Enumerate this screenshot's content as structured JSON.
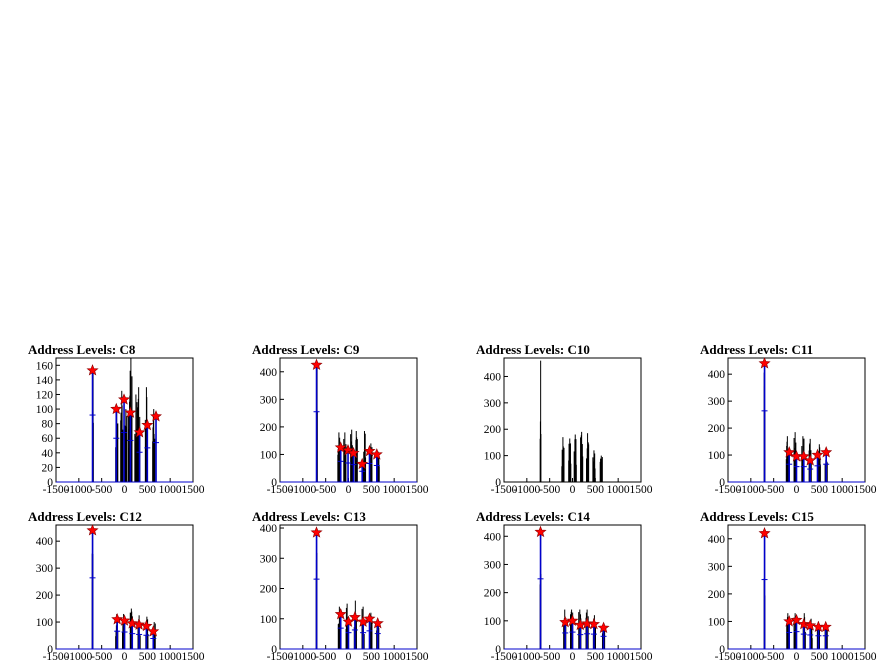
{
  "chart_data": [
    {
      "type": "line",
      "title": "Address Levels: C8",
      "xlim": [
        -1500,
        1500
      ],
      "ylim": [
        0,
        170
      ],
      "yticks": [
        0,
        20,
        40,
        60,
        80,
        100,
        120,
        140,
        160
      ],
      "xticks": [
        "-1500",
        "-1000",
        "-500",
        "0",
        "500",
        "1000",
        "1500"
      ],
      "peaks": [
        [
          -690,
          155
        ],
        [
          -170,
          100
        ],
        [
          -60,
          125
        ],
        [
          30,
          100
        ],
        [
          110,
          110
        ],
        [
          140,
          170
        ],
        [
          250,
          120
        ],
        [
          310,
          130
        ],
        [
          480,
          130
        ],
        [
          640,
          100
        ]
      ],
      "markers": [
        [
          -700,
          153
        ],
        [
          -180,
          100
        ],
        [
          -10,
          113
        ],
        [
          130,
          95
        ],
        [
          330,
          68
        ],
        [
          500,
          78
        ],
        [
          690,
          90
        ]
      ]
    },
    {
      "type": "line",
      "title": "Address Levels: C9",
      "xlim": [
        -1500,
        1500
      ],
      "ylim": [
        0,
        450
      ],
      "yticks": [
        0,
        100,
        200,
        300,
        400
      ],
      "xticks": [
        "-1500",
        "-1000",
        "-500",
        "0",
        "500",
        "1000",
        "1500"
      ],
      "peaks": [
        [
          -690,
          420
        ],
        [
          -210,
          180
        ],
        [
          -80,
          180
        ],
        [
          70,
          190
        ],
        [
          170,
          185
        ],
        [
          350,
          185
        ],
        [
          490,
          140
        ],
        [
          650,
          110
        ]
      ],
      "markers": [
        [
          -700,
          425
        ],
        [
          -170,
          125
        ],
        [
          -10,
          115
        ],
        [
          110,
          105
        ],
        [
          300,
          65
        ],
        [
          460,
          112
        ],
        [
          620,
          100
        ]
      ]
    },
    {
      "type": "line",
      "title": "Address Levels: C10",
      "xlim": [
        -1500,
        1500
      ],
      "ylim": [
        0,
        470
      ],
      "yticks": [
        0,
        100,
        200,
        300,
        400
      ],
      "xticks": [
        "-1500",
        "-1000",
        "-500",
        "0",
        "500",
        "1000",
        "1500"
      ],
      "peaks": [
        [
          -700,
          460
        ],
        [
          -210,
          170
        ],
        [
          -60,
          165
        ],
        [
          60,
          180
        ],
        [
          200,
          190
        ],
        [
          330,
          185
        ],
        [
          470,
          120
        ],
        [
          630,
          100
        ]
      ],
      "markers": []
    },
    {
      "type": "line",
      "title": "Address Levels: C11",
      "xlim": [
        -1500,
        1500
      ],
      "ylim": [
        0,
        460
      ],
      "yticks": [
        0,
        100,
        200,
        300,
        400
      ],
      "xticks": [
        "-1500",
        "-1000",
        "-500",
        "0",
        "500",
        "1000",
        "1500"
      ],
      "peaks": [
        [
          -700,
          440
        ],
        [
          -200,
          170
        ],
        [
          -30,
          185
        ],
        [
          140,
          170
        ],
        [
          300,
          160
        ],
        [
          500,
          140
        ],
        [
          650,
          110
        ]
      ],
      "markers": [
        [
          -700,
          440
        ],
        [
          -160,
          110
        ],
        [
          0,
          95
        ],
        [
          160,
          95
        ],
        [
          300,
          80
        ],
        [
          460,
          100
        ],
        [
          650,
          110
        ]
      ]
    },
    {
      "type": "line",
      "title": "Address Levels: C12",
      "xlim": [
        -1500,
        1500
      ],
      "ylim": [
        0,
        460
      ],
      "yticks": [
        0,
        100,
        200,
        300,
        400
      ],
      "xticks": [
        "-1500",
        "-1000",
        "-500",
        "0",
        "500",
        "1000",
        "1500"
      ],
      "peaks": [
        [
          -700,
          440
        ],
        [
          -170,
          130
        ],
        [
          -20,
          130
        ],
        [
          150,
          150
        ],
        [
          320,
          125
        ],
        [
          490,
          120
        ],
        [
          650,
          100
        ]
      ],
      "markers": [
        [
          -700,
          440
        ],
        [
          -160,
          110
        ],
        [
          0,
          105
        ],
        [
          170,
          95
        ],
        [
          320,
          90
        ],
        [
          480,
          85
        ],
        [
          630,
          65
        ]
      ]
    },
    {
      "type": "line",
      "title": "Address Levels: C13",
      "xlim": [
        -1500,
        1500
      ],
      "ylim": [
        0,
        410
      ],
      "yticks": [
        0,
        100,
        200,
        300,
        400
      ],
      "xticks": [
        "-1500",
        "-1000",
        "-500",
        "0",
        "500",
        "1000",
        "1500"
      ],
      "peaks": [
        [
          -700,
          390
        ],
        [
          -200,
          140
        ],
        [
          -30,
          150
        ],
        [
          150,
          160
        ],
        [
          320,
          140
        ],
        [
          490,
          120
        ],
        [
          640,
          100
        ]
      ],
      "markers": [
        [
          -700,
          385
        ],
        [
          -170,
          115
        ],
        [
          0,
          90
        ],
        [
          140,
          105
        ],
        [
          320,
          90
        ],
        [
          460,
          100
        ],
        [
          640,
          85
        ]
      ]
    },
    {
      "type": "line",
      "title": "Address Levels: C14",
      "xlim": [
        -1500,
        1500
      ],
      "ylim": [
        0,
        440
      ],
      "yticks": [
        0,
        100,
        200,
        300,
        400
      ],
      "xticks": [
        "-1500",
        "-1000",
        "-500",
        "0",
        "500",
        "1000",
        "1500"
      ],
      "peaks": [
        [
          -700,
          410
        ],
        [
          -170,
          140
        ],
        [
          -20,
          140
        ],
        [
          160,
          140
        ],
        [
          320,
          140
        ],
        [
          480,
          120
        ],
        [
          680,
          90
        ]
      ],
      "markers": [
        [
          -700,
          415
        ],
        [
          -160,
          95
        ],
        [
          0,
          100
        ],
        [
          170,
          85
        ],
        [
          320,
          90
        ],
        [
          470,
          88
        ],
        [
          680,
          75
        ]
      ]
    },
    {
      "type": "line",
      "title": "Address Levels: C15",
      "xlim": [
        -1500,
        1500
      ],
      "ylim": [
        0,
        450
      ],
      "yticks": [
        0,
        100,
        200,
        300,
        400
      ],
      "xticks": [
        "-1500",
        "-1000",
        "-500",
        "0",
        "500",
        "1000",
        "1500"
      ],
      "peaks": [
        [
          -700,
          420
        ],
        [
          -190,
          130
        ],
        [
          -30,
          130
        ],
        [
          170,
          130
        ],
        [
          320,
          110
        ],
        [
          480,
          100
        ],
        [
          650,
          90
        ]
      ],
      "markers": [
        [
          -700,
          420
        ],
        [
          -160,
          100
        ],
        [
          0,
          105
        ],
        [
          160,
          90
        ],
        [
          300,
          85
        ],
        [
          480,
          80
        ],
        [
          640,
          80
        ]
      ]
    }
  ]
}
